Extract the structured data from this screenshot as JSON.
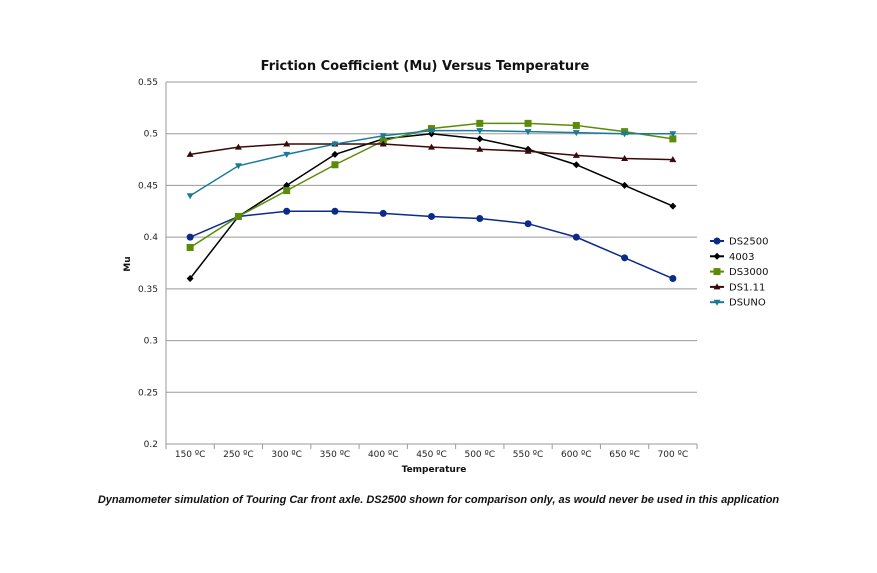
{
  "chart_data": {
    "type": "line",
    "title": "Friction Coefficient (Mu) Versus Temperature",
    "xlabel": "Temperature",
    "ylabel": "Mu",
    "categories": [
      "150 ºC",
      "250 ºC",
      "300 ºC",
      "350 ºC",
      "400 ºC",
      "450 ºC",
      "500 ºC",
      "550 ºC",
      "600 ºC",
      "650 ºC",
      "700 ºC"
    ],
    "ylim": [
      0.2,
      0.55
    ],
    "yticks": [
      "0.2",
      "0.25",
      "0.3",
      "0.35",
      "0.4",
      "0.45",
      "0.5",
      "0.55"
    ],
    "grid": true,
    "legend_position": "right",
    "series": [
      {
        "name": "DS2500",
        "color": "#0b2a8a",
        "marker": "circle",
        "values": [
          0.4,
          0.42,
          0.425,
          0.425,
          0.423,
          0.42,
          0.418,
          0.413,
          0.4,
          0.38,
          0.36
        ]
      },
      {
        "name": "4003",
        "color": "#000000",
        "marker": "diamond",
        "values": [
          0.36,
          0.42,
          0.45,
          0.48,
          0.495,
          0.5,
          0.495,
          0.485,
          0.47,
          0.45,
          0.43
        ]
      },
      {
        "name": "DS3000",
        "color": "#5a8c0a",
        "marker": "square",
        "values": [
          0.39,
          0.42,
          0.445,
          0.47,
          0.493,
          0.505,
          0.51,
          0.51,
          0.508,
          0.502,
          0.495
        ]
      },
      {
        "name": "DS1.11",
        "color": "#3a0a0a",
        "marker": "triangle-up",
        "values": [
          0.48,
          0.487,
          0.49,
          0.49,
          0.49,
          0.487,
          0.485,
          0.483,
          0.479,
          0.476,
          0.475
        ]
      },
      {
        "name": "DSUNO",
        "color": "#1a7a9a",
        "marker": "triangle-down",
        "values": [
          0.44,
          0.469,
          0.48,
          0.49,
          0.498,
          0.503,
          0.503,
          0.502,
          0.501,
          0.5,
          0.5
        ]
      }
    ]
  },
  "caption": "Dynamometer simulation of Touring Car front axle. DS2500 shown for comparison only, as would never be used in this application"
}
